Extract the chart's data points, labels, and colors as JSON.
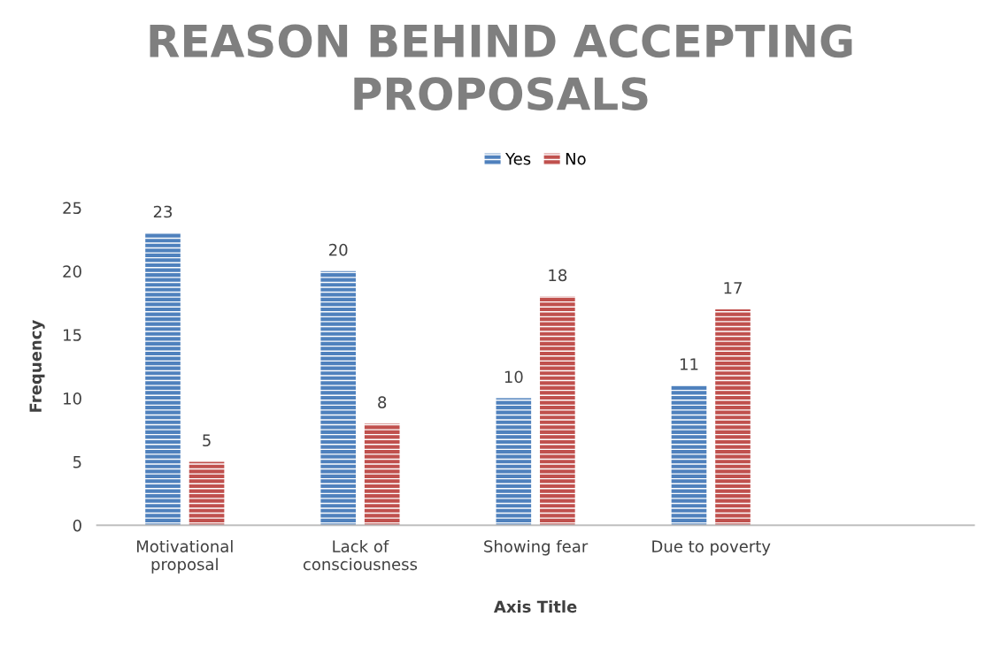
{
  "chart_data": {
    "type": "bar",
    "title": "REASON BEHIND ACCEPTING PROPOSALS",
    "xlabel": "Axis Title",
    "ylabel": "Frequency",
    "categories": [
      "Motivational\nproposal",
      "Lack of\nconsciousness",
      "Showing fear",
      "Due to poverty",
      null
    ],
    "series": [
      {
        "name": "Yes",
        "color": "#4f81bd",
        "values": [
          23,
          20,
          10,
          11,
          null
        ]
      },
      {
        "name": "No",
        "color": "#c0504d",
        "values": [
          5,
          8,
          18,
          17,
          null
        ]
      }
    ],
    "ylim": [
      0,
      25
    ],
    "yticks": [
      0,
      5,
      10,
      15,
      20,
      25
    ],
    "grid": false,
    "legend": "top",
    "data_labels": true
  }
}
